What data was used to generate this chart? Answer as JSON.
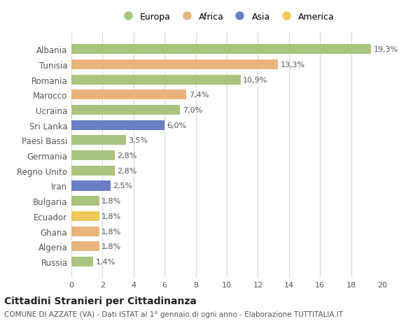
{
  "countries": [
    "Albania",
    "Tunisia",
    "Romania",
    "Marocco",
    "Ucraina",
    "Sri Lanka",
    "Paesi Bassi",
    "Germania",
    "Regno Unito",
    "Iran",
    "Bulgaria",
    "Ecuador",
    "Ghana",
    "Algeria",
    "Russia"
  ],
  "values": [
    19.3,
    13.3,
    10.9,
    7.4,
    7.0,
    6.0,
    3.5,
    2.8,
    2.8,
    2.5,
    1.8,
    1.8,
    1.8,
    1.8,
    1.4
  ],
  "labels": [
    "19,3%",
    "13,3%",
    "10,9%",
    "7,4%",
    "7,0%",
    "6,0%",
    "3,5%",
    "2,8%",
    "2,8%",
    "2,5%",
    "1,8%",
    "1,8%",
    "1,8%",
    "1,8%",
    "1,4%"
  ],
  "continents": [
    "Europa",
    "Africa",
    "Europa",
    "Africa",
    "Europa",
    "Asia",
    "Europa",
    "Europa",
    "Europa",
    "Asia",
    "Europa",
    "America",
    "Africa",
    "Africa",
    "Europa"
  ],
  "colors": {
    "Europa": "#a8c47e",
    "Africa": "#e8b47e",
    "Asia": "#6b7fc4",
    "America": "#f0c85a"
  },
  "legend_order": [
    "Europa",
    "Africa",
    "Asia",
    "America"
  ],
  "title": "Cittadini Stranieri per Cittadinanza",
  "subtitle": "COMUNE DI AZZATE (VA) - Dati ISTAT al 1° gennaio di ogni anno - Elaborazione TUTTITALIA.IT",
  "xlim": [
    0,
    20
  ],
  "xticks": [
    0,
    2,
    4,
    6,
    8,
    10,
    12,
    14,
    16,
    18,
    20
  ],
  "background_color": "#ffffff",
  "grid_color": "#d8d8d8"
}
